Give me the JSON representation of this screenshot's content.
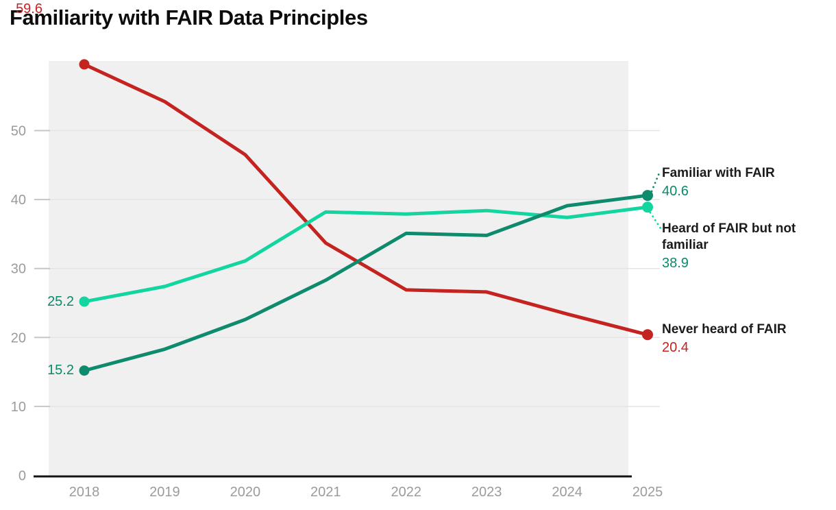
{
  "chart_data": {
    "type": "line",
    "title": "Familiarity with FAIR Data Principles",
    "x_categories": [
      "2018",
      "2019",
      "2020",
      "2021",
      "2022",
      "2023",
      "2024",
      "2025"
    ],
    "y_ticks": [
      0,
      10,
      20,
      30,
      40,
      50
    ],
    "y_range": [
      0,
      60
    ],
    "grid": true,
    "legend_position": "right-annotations",
    "plot_background": "#f0f0f0",
    "gridline_color": "#e4e4e4",
    "tick_mark_color": "#c6c6c6",
    "axis_color": "#141414",
    "tick_label_color": "#9b9b9b",
    "series": [
      {
        "name": "Familiar with FAIR",
        "color": "#0e8a6c",
        "value_text_color": "#0a8a6a",
        "values": [
          15.2,
          18.3,
          22.6,
          28.3,
          35.1,
          34.8,
          39.1,
          40.6
        ],
        "start_label": "15.2",
        "end_label": "40.6"
      },
      {
        "name": "Heard of FAIR but not familiar",
        "color": "#12d5a0",
        "value_text_color": "#0a8a6a",
        "values": [
          25.2,
          27.4,
          31.1,
          38.2,
          37.9,
          38.4,
          37.4,
          38.9
        ],
        "start_label": "25.2",
        "end_label": "38.9"
      },
      {
        "name": "Never heard of FAIR",
        "color": "#c4231f",
        "value_text_color": "#c4231f",
        "values": [
          59.6,
          54.2,
          46.5,
          33.7,
          26.9,
          26.6,
          23.4,
          20.4
        ],
        "start_label": "59.6",
        "end_label": "20.4"
      }
    ]
  }
}
